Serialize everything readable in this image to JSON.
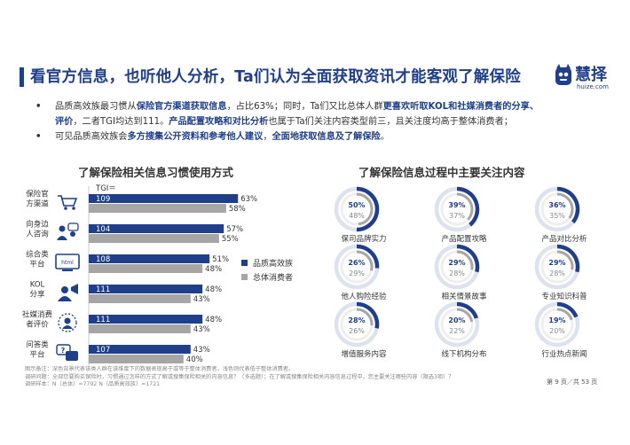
{
  "title": "看官方信息，也听他人分析，Ta们认为全面获取资讯才能客观了解保险",
  "logo": {
    "text": "慧择",
    "url": "huize.com"
  },
  "bullets": [
    {
      "line1": [
        {
          "t": "品质高效族最习惯从"
        },
        {
          "t": "保险官方渠道获取信息",
          "hl": true
        },
        {
          "t": "，占比63%；同时，Ta们又比总体人群"
        },
        {
          "t": "更喜欢听取KOL和社媒消费者的分享、",
          "hl": true
        }
      ],
      "line2": [
        {
          "t": "评价",
          "hl": true
        },
        {
          "t": "，二者TGI均达到111。"
        },
        {
          "t": "产品配置攻略和对比分析",
          "hl": true
        },
        {
          "t": "也属于Ta们关注内容类型前三，且关注度均高于整体消费者；"
        }
      ]
    },
    {
      "line1": [
        {
          "t": "可见品质高效族会"
        },
        {
          "t": "多方搜集公开资料和参考他人建议",
          "hl": true
        },
        {
          "t": "，"
        },
        {
          "t": "全面地获取信息及了解保险",
          "hl": true
        },
        {
          "t": "。"
        }
      ]
    }
  ],
  "left_chart_title": "了解保险相关信息习惯使用方式",
  "right_chart_title": "了解保险信息过程中主要关注内容",
  "colors": {
    "primary": "#1f3f8a",
    "secondary": "#a6a6a6",
    "ring_bg": "#dde3ee"
  },
  "chart_data": [
    {
      "type": "bar",
      "title": "了解保险相关信息习惯使用方式",
      "categories": [
        [
          "保险官",
          "方渠道"
        ],
        [
          "向身边",
          "人咨询"
        ],
        [
          "综合类",
          "平台"
        ],
        [
          "KOL",
          "分享"
        ],
        [
          "社媒消费",
          "者评价"
        ],
        [
          "问答类",
          "平台"
        ]
      ],
      "icons": [
        "shopping-cart-icon",
        "people-consult-icon",
        "html-monitor-icon",
        "kol-share-icon",
        "social-review-icon",
        "qa-platform-icon"
      ],
      "series": [
        {
          "name": "品质高效族",
          "values": [
            63,
            57,
            51,
            48,
            48,
            43
          ],
          "color": "#1f3f8a"
        },
        {
          "name": "总体消费者",
          "values": [
            58,
            55,
            48,
            43,
            43,
            40
          ],
          "color": "#a6a6a6"
        }
      ],
      "tgi_label": "TGI＝",
      "tgi": [
        109,
        104,
        108,
        111,
        111,
        107
      ],
      "value_suffix": "%",
      "xlim": [
        0,
        100
      ],
      "legend_position": "right"
    },
    {
      "type": "donut",
      "title": "了解保险信息过程中主要关注内容",
      "items": [
        {
          "label": "保司品牌实力",
          "values": [
            50,
            48
          ]
        },
        {
          "label": "产品配置攻略",
          "values": [
            39,
            37
          ]
        },
        {
          "label": "产品对比分析",
          "values": [
            36,
            35
          ]
        },
        {
          "label": "他人购险经验",
          "values": [
            26,
            29
          ]
        },
        {
          "label": "相关情景故事",
          "values": [
            29,
            28
          ]
        },
        {
          "label": "专业知识科普",
          "values": [
            29,
            28
          ]
        },
        {
          "label": "增值服务内容",
          "values": [
            28,
            26
          ]
        },
        {
          "label": "线下机构分布",
          "values": [
            20,
            22
          ]
        },
        {
          "label": "行业热点新闻",
          "values": [
            19,
            20
          ]
        }
      ],
      "series_names": [
        "品质高效族",
        "总体消费者"
      ],
      "value_suffix": "%"
    }
  ],
  "footnote": {
    "line1": "图示备注：深色背景代表该类人群在该维度下的数据表现高于或等于整体消费者，浅色则代表低于整体消费者。",
    "line2": "调研问题：全部您要购买保险时，习惯通过怎样的方式了解或搜集保险相关的内容信息？（多选题）；在了解或搜集保险相关内容信息过程中，您主要关注哪些内容（限选3项）？",
    "line3": "调研样本：N（总体）=7792    N（品质高效族）=1721"
  },
  "page_number": "第 9 页／共 53 页"
}
